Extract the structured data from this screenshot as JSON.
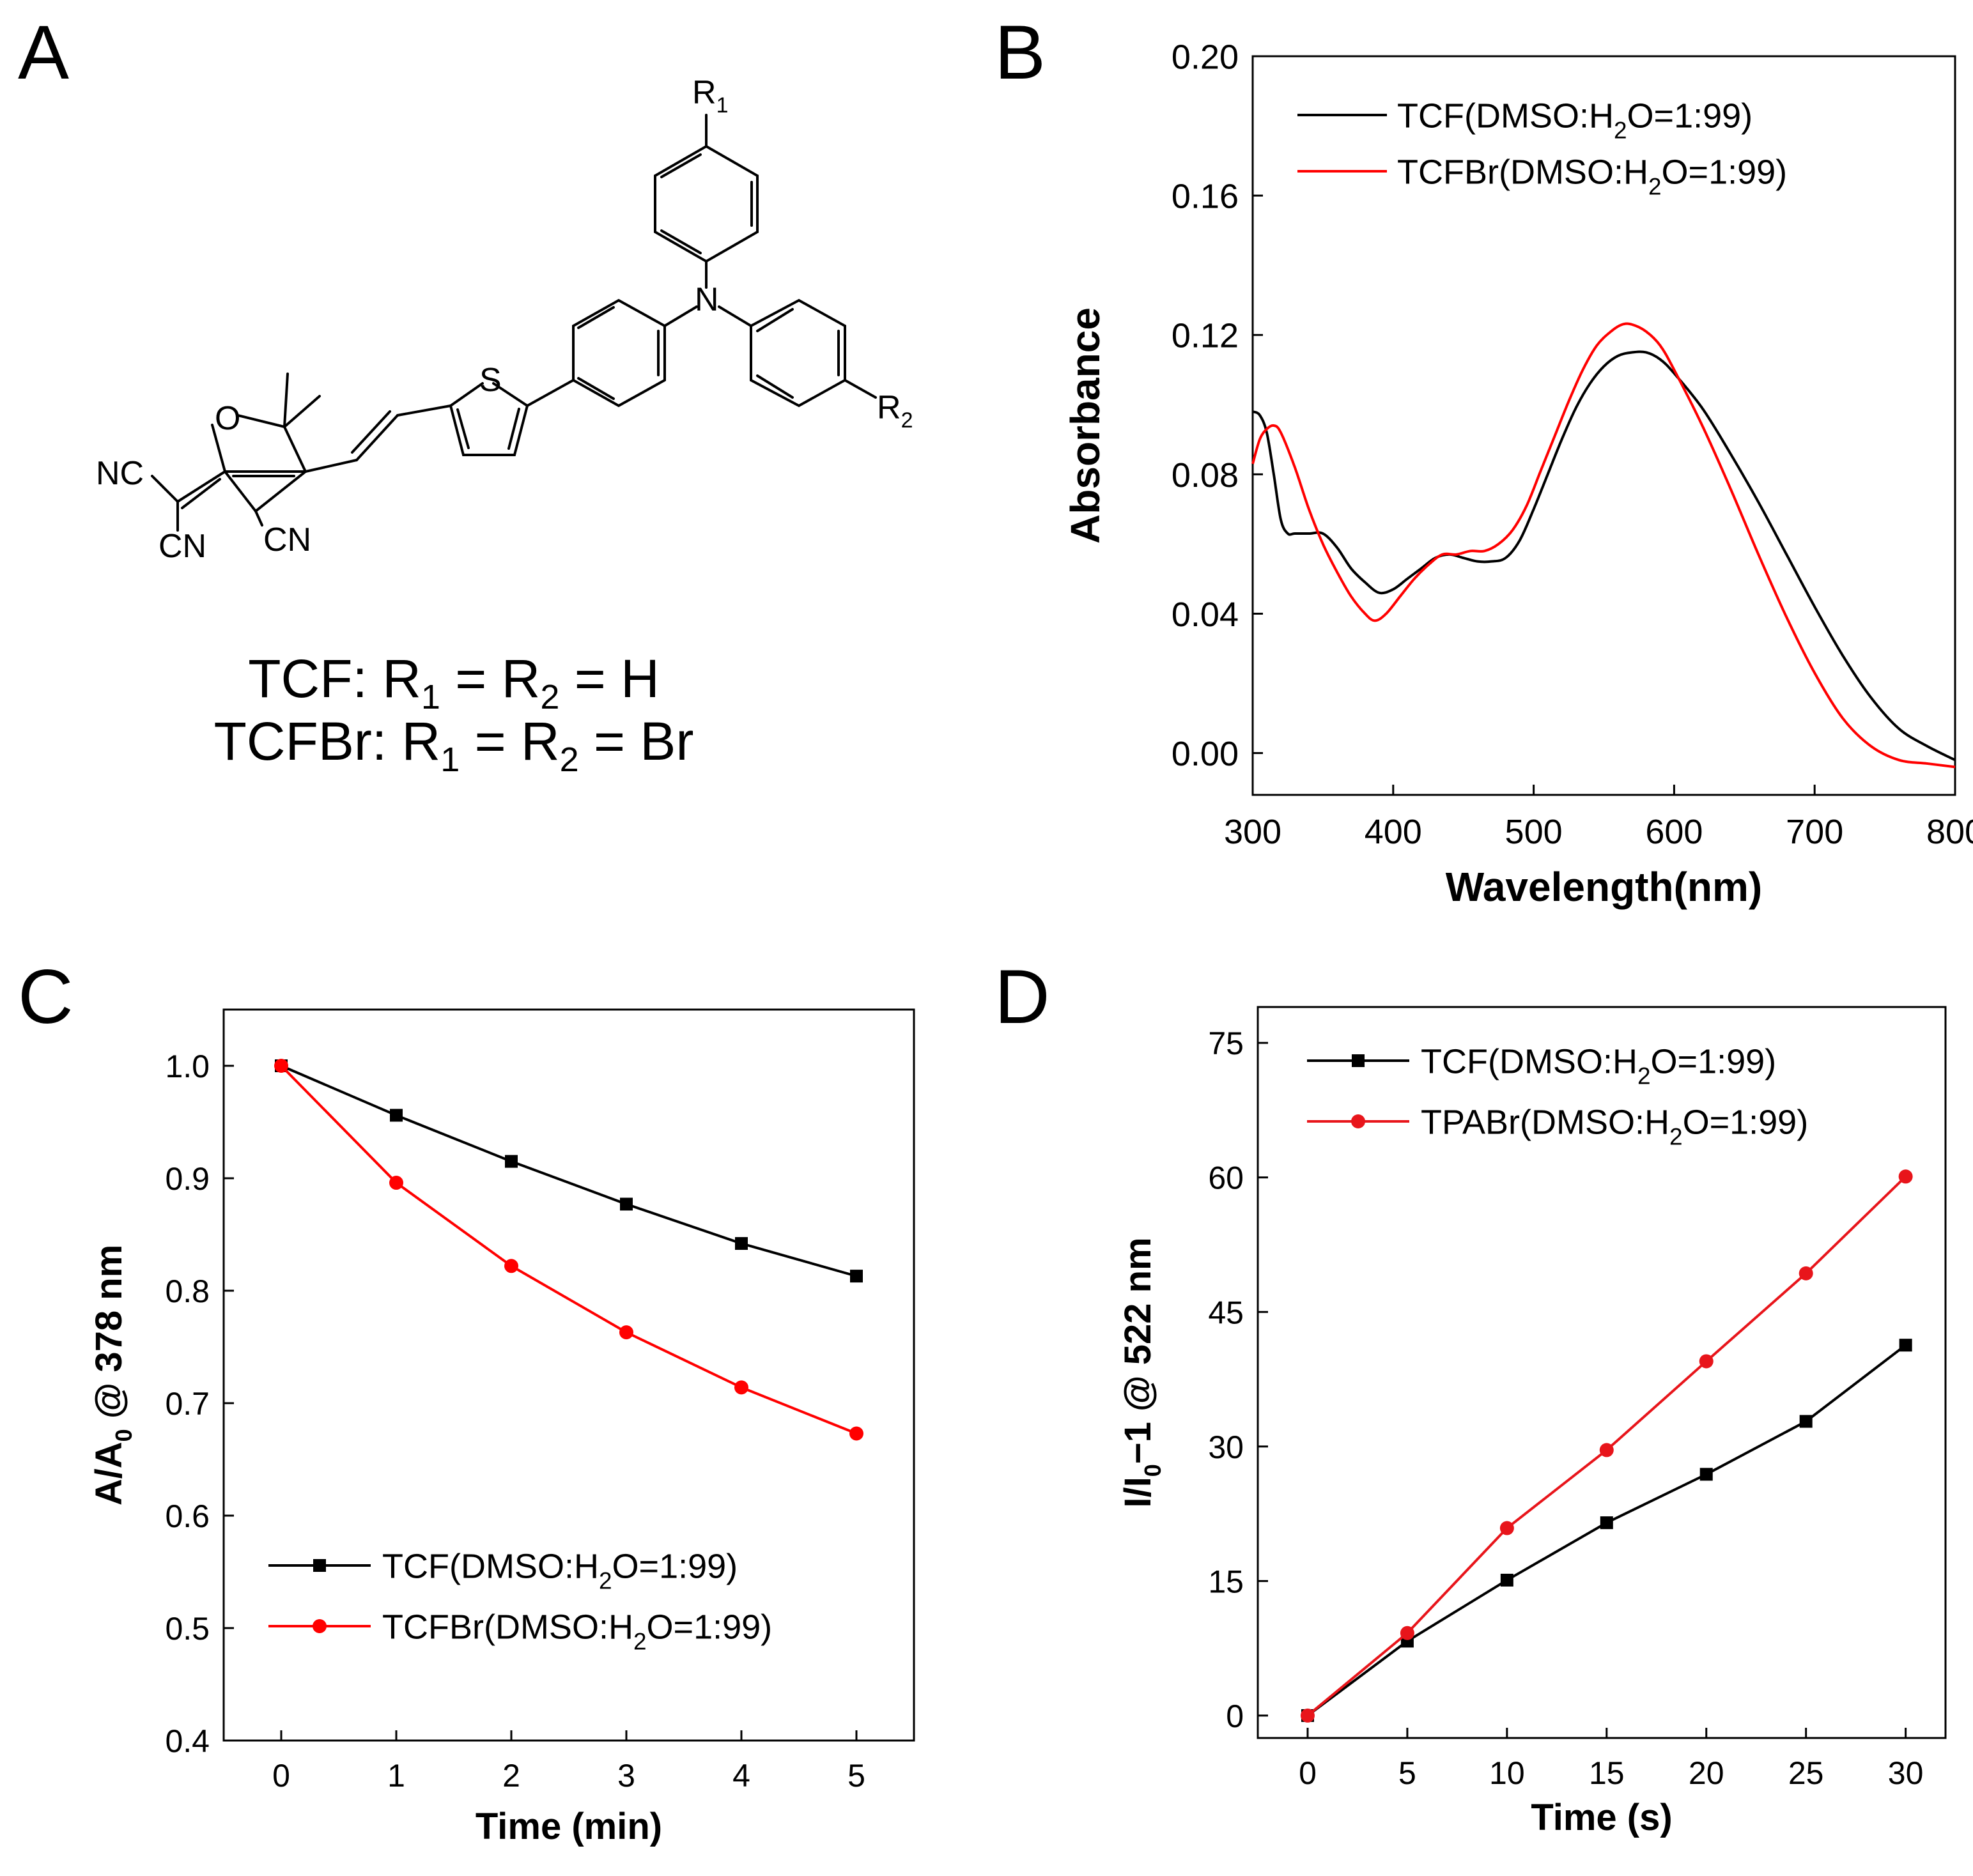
{
  "panels": {
    "a": "A",
    "b": "B",
    "c": "C",
    "d": "D"
  },
  "structure": {
    "atoms": {
      "r1": "R",
      "r1_sub": "1",
      "r2": "R",
      "r2_sub": "2",
      "n": "N",
      "s": "S",
      "o": "O",
      "nc": "NC",
      "cn_left": "CN",
      "cn_right": "CN"
    },
    "caption_line1": {
      "prefix": "TCF: R",
      "s1": "1",
      "mid": " = R",
      "s2": "2",
      "end": " = H"
    },
    "caption_line2": {
      "prefix": "TCFBr: R",
      "s1": "1",
      "mid": " = R",
      "s2": "2",
      "end": " = Br"
    }
  },
  "colors": {
    "black": "#000000",
    "red": "#ff0000",
    "red_dark": "#e8151b"
  },
  "chart_data": [
    {
      "id": "B",
      "type": "line",
      "xlabel": "Wavelength(nm)",
      "ylabel": "Absorbance",
      "xlim": [
        300,
        800
      ],
      "ylim": [
        -0.012,
        0.2
      ],
      "xticks": [
        "300",
        "400",
        "500",
        "600",
        "700",
        "800"
      ],
      "yticks": [
        "0.00",
        "0.04",
        "0.08",
        "0.12",
        "0.16",
        "0.20"
      ],
      "legend": "top-left",
      "series": [
        {
          "name": "TCF(DMSO:H2O=1:99)",
          "legend": {
            "pre": "TCF(DMSO:H",
            "sub": "2",
            "post": "O=1:99)"
          },
          "color": "#000000",
          "x": [
            300,
            305,
            310,
            315,
            320,
            325,
            330,
            340,
            350,
            360,
            370,
            380,
            390,
            400,
            410,
            420,
            430,
            440,
            450,
            460,
            470,
            480,
            490,
            500,
            510,
            520,
            530,
            540,
            550,
            560,
            570,
            580,
            590,
            600,
            620,
            640,
            660,
            680,
            700,
            720,
            740,
            760,
            780,
            800
          ],
          "values": [
            0.098,
            0.097,
            0.092,
            0.08,
            0.067,
            0.063,
            0.063,
            0.063,
            0.063,
            0.059,
            0.053,
            0.049,
            0.046,
            0.047,
            0.05,
            0.053,
            0.056,
            0.057,
            0.056,
            0.055,
            0.055,
            0.056,
            0.061,
            0.07,
            0.08,
            0.09,
            0.099,
            0.106,
            0.111,
            0.114,
            0.115,
            0.115,
            0.113,
            0.109,
            0.099,
            0.086,
            0.072,
            0.057,
            0.042,
            0.028,
            0.016,
            0.007,
            0.002,
            -0.002
          ]
        },
        {
          "name": "TCFBr(DMSO:H2O=1:99)",
          "legend": {
            "pre": "TCFBr(DMSO:H",
            "sub": "2",
            "post": "O=1:99)"
          },
          "color": "#ff0000",
          "x": [
            300,
            305,
            310,
            315,
            320,
            330,
            340,
            350,
            360,
            370,
            380,
            387,
            395,
            405,
            415,
            425,
            435,
            445,
            455,
            465,
            475,
            485,
            495,
            505,
            515,
            525,
            535,
            545,
            555,
            563,
            570,
            580,
            590,
            600,
            620,
            640,
            660,
            680,
            700,
            720,
            740,
            760,
            780,
            800
          ],
          "values": [
            0.083,
            0.09,
            0.093,
            0.094,
            0.092,
            0.082,
            0.07,
            0.06,
            0.052,
            0.045,
            0.04,
            0.038,
            0.04,
            0.045,
            0.05,
            0.054,
            0.057,
            0.057,
            0.058,
            0.058,
            0.06,
            0.064,
            0.071,
            0.081,
            0.091,
            0.101,
            0.11,
            0.117,
            0.121,
            0.123,
            0.123,
            0.121,
            0.117,
            0.11,
            0.094,
            0.076,
            0.057,
            0.039,
            0.023,
            0.01,
            0.002,
            -0.002,
            -0.003,
            -0.004
          ]
        }
      ]
    },
    {
      "id": "C",
      "type": "line",
      "xlabel": "Time (min)",
      "ylabel": {
        "pre": "A/A",
        "sub": "0",
        "post": " @ 378 nm"
      },
      "xlim": [
        -0.5,
        5.5
      ],
      "ylim": [
        0.4,
        1.05
      ],
      "xticks": [
        "0",
        "1",
        "2",
        "3",
        "4",
        "5"
      ],
      "yticks": [
        "0.4",
        "0.5",
        "0.6",
        "0.7",
        "0.8",
        "0.9",
        "1.0"
      ],
      "legend": "bottom-left",
      "series": [
        {
          "name": "TCF(DMSO:H2O=1:99)",
          "legend": {
            "pre": "TCF(DMSO:H",
            "sub": "2",
            "post": "O=1:99)"
          },
          "color": "#000000",
          "marker": "square",
          "x": [
            0,
            1,
            2,
            3,
            4,
            5
          ],
          "values": [
            1.0,
            0.956,
            0.915,
            0.877,
            0.842,
            0.813
          ]
        },
        {
          "name": "TCFBr(DMSO:H2O=1:99)",
          "legend": {
            "pre": "TCFBr(DMSO:H",
            "sub": "2",
            "post": "O=1:99)"
          },
          "color": "#ff0000",
          "marker": "circle",
          "x": [
            0,
            1,
            2,
            3,
            4,
            5
          ],
          "values": [
            1.0,
            0.896,
            0.822,
            0.763,
            0.714,
            0.673
          ]
        }
      ]
    },
    {
      "id": "D",
      "type": "line",
      "xlabel": "Time (s)",
      "ylabel": {
        "pre": "I/I",
        "sub": "0",
        "post": "−1 @ 522 nm"
      },
      "xlim": [
        -2.5,
        32
      ],
      "ylim": [
        -2.5,
        79
      ],
      "xticks": [
        "0",
        "5",
        "10",
        "15",
        "20",
        "25",
        "30"
      ],
      "yticks": [
        "0",
        "15",
        "30",
        "45",
        "60",
        "75"
      ],
      "legend": "top-left",
      "series": [
        {
          "name": "TCF(DMSO:H2O=1:99)",
          "legend": {
            "pre": "TCF(DMSO:H",
            "sub": "2",
            "post": "O=1:99)"
          },
          "color": "#000000",
          "marker": "square",
          "x": [
            0,
            5,
            10,
            15,
            20,
            25,
            30
          ],
          "values": [
            0,
            8.3,
            15.1,
            21.5,
            26.9,
            32.8,
            41.3
          ]
        },
        {
          "name": "TPABr(DMSO:H2O=1:99)",
          "legend": {
            "pre": "TPABr(DMSO:H",
            "sub": "2",
            "post": "O=1:99)"
          },
          "color": "#e8151b",
          "marker": "circle",
          "x": [
            0,
            5,
            10,
            15,
            20,
            25,
            30
          ],
          "values": [
            0,
            9.2,
            20.9,
            29.6,
            39.5,
            49.3,
            60.1
          ]
        }
      ]
    }
  ]
}
